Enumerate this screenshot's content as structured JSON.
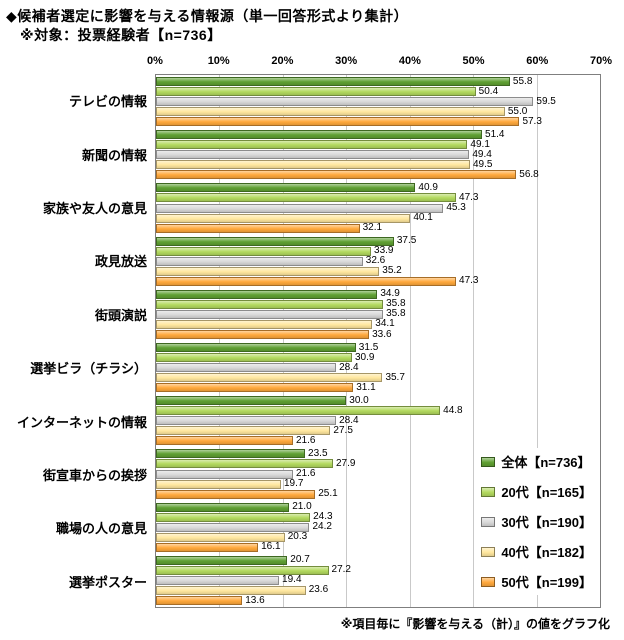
{
  "header": {
    "title": "◆候補者選定に影響を与える情報源（単一回答形式より集計）",
    "subtitle": "※対象：投票経験者【n=736】"
  },
  "footer": {
    "note": "※項目毎に『影響を与える（計）』の値をグラフ化"
  },
  "chart_data": {
    "type": "bar",
    "orientation": "horizontal",
    "title": "候補者選定に影響を与える情報源",
    "xlabel": "",
    "ylabel": "",
    "xlim": [
      0,
      70
    ],
    "x_ticks": [
      "0%",
      "10%",
      "20%",
      "30%",
      "40%",
      "50%",
      "60%",
      "70%"
    ],
    "grid": true,
    "legend_position": "inside-bottom-right",
    "value_labels": true,
    "categories": [
      "テレビの情報",
      "新聞の情報",
      "家族や友人の意見",
      "政見放送",
      "街頭演説",
      "選挙ビラ（チラシ）",
      "インターネットの情報",
      "街宣車からの挨拶",
      "職場の人の意見",
      "選挙ポスター"
    ],
    "series": [
      {
        "name": "全体【n=736】",
        "color": "#5fa032",
        "values": [
          55.8,
          51.4,
          40.9,
          37.5,
          34.9,
          31.5,
          30.0,
          23.5,
          21.0,
          20.7
        ]
      },
      {
        "name": "20代【n=165】",
        "color": "#b2d95e",
        "values": [
          50.4,
          49.1,
          47.3,
          33.9,
          35.8,
          30.9,
          44.8,
          27.9,
          24.3,
          27.2
        ]
      },
      {
        "name": "30代【n=190】",
        "color": "#d8d8d8",
        "values": [
          59.5,
          49.4,
          45.3,
          32.6,
          35.8,
          28.4,
          28.4,
          21.6,
          24.2,
          19.4
        ]
      },
      {
        "name": "40代【n=182】",
        "color": "#ffe79e",
        "values": [
          55.0,
          49.5,
          40.1,
          35.2,
          34.1,
          35.7,
          27.5,
          19.7,
          20.3,
          23.6
        ]
      },
      {
        "name": "50代【n=199】",
        "color": "#ffa83c",
        "values": [
          57.3,
          56.8,
          32.1,
          47.3,
          33.6,
          31.1,
          21.6,
          25.1,
          16.1,
          13.6
        ]
      }
    ]
  }
}
